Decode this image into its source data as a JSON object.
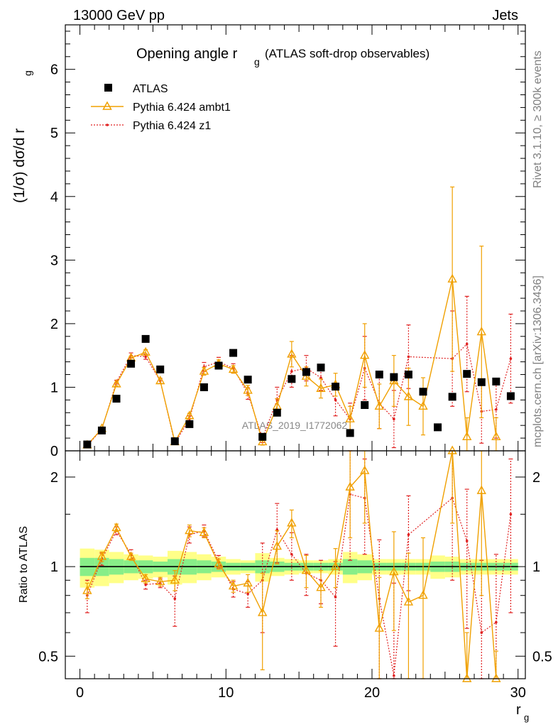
{
  "header": {
    "energy_label": "13000 GeV pp",
    "process_label": "Jets"
  },
  "side_labels": {
    "rivet": "Rivet 3.1.10, ≥ 300k events",
    "mcplots": "mcplots.cern.ch [arXiv:1306.3436]"
  },
  "analysis_id": "ATLAS_2019_I1772062",
  "colors": {
    "atlas": "#000000",
    "ambt1": "#f0a000",
    "z1": "#e02020",
    "band_outer": "#ffff88",
    "band_inner": "#88ee88"
  },
  "chart_data": [
    {
      "type": "scatter",
      "panel": "main",
      "title_main": "Opening angle r",
      "title_sub": "g",
      "title_rest": "(ATLAS soft-drop observables)",
      "ylabel": "(1/σ) dσ/d r",
      "ylabel_sub": "g",
      "xlim": [
        -1,
        30.5
      ],
      "ylim": [
        0,
        6.7
      ],
      "yticks": [
        0,
        1,
        2,
        3,
        4,
        5,
        6
      ],
      "ytick_labels": [
        "0",
        "1",
        "2",
        "3",
        "4",
        "5",
        "6"
      ],
      "legend": [
        "ATLAS",
        "Pythia 6.424 ambt1",
        "Pythia 6.424 z1"
      ],
      "series": [
        {
          "name": "ATLAS",
          "x": [
            0.5,
            1.5,
            2.5,
            3.5,
            4.5,
            5.5,
            6.5,
            7.5,
            8.5,
            9.5,
            10.5,
            11.5,
            12.5,
            13.5,
            14.5,
            15.5,
            16.5,
            17.5,
            18.5,
            19.5,
            20.5,
            21.5,
            22.5,
            23.5,
            24.5,
            25.5,
            26.5,
            27.5,
            28.5,
            29.5
          ],
          "y": [
            0.1,
            0.32,
            0.82,
            1.37,
            1.76,
            1.28,
            0.15,
            0.42,
            1.0,
            1.34,
            1.54,
            1.12,
            0.22,
            0.6,
            1.13,
            1.24,
            1.31,
            1.01,
            0.28,
            0.72,
            1.2,
            1.16,
            1.2,
            0.93,
            0.37,
            0.85,
            1.21,
            1.08,
            1.09,
            0.86
          ]
        },
        {
          "name": "Pythia 6.424 ambt1",
          "x": [
            0.5,
            1.5,
            2.5,
            3.5,
            4.5,
            5.5,
            6.5,
            7.5,
            8.5,
            9.5,
            10.5,
            11.5,
            12.5,
            13.5,
            14.5,
            15.5,
            16.5,
            17.5,
            18.5,
            19.5,
            20.5,
            21.5,
            22.5,
            23.5,
            25.5,
            26.5,
            27.5,
            28.5
          ],
          "y": [
            0.09,
            0.35,
            1.05,
            1.46,
            1.55,
            1.1,
            0.14,
            0.55,
            1.25,
            1.37,
            1.28,
            0.95,
            0.14,
            0.7,
            1.52,
            1.17,
            0.98,
            1.04,
            0.5,
            1.5,
            0.7,
            1.1,
            0.85,
            0.7,
            2.7,
            0.22,
            1.87,
            0.22
          ],
          "err": [
            0.02,
            0.02,
            0.03,
            0.03,
            0.04,
            0.04,
            0.02,
            0.04,
            0.06,
            0.06,
            0.06,
            0.08,
            0.05,
            0.12,
            0.2,
            0.15,
            0.15,
            0.18,
            0.2,
            0.5,
            0.35,
            0.4,
            0.45,
            0.45,
            1.45,
            0.3,
            1.35,
            0.3
          ]
        },
        {
          "name": "Pythia 6.424 z1",
          "x": [
            0.5,
            1.5,
            2.5,
            3.5,
            4.5,
            5.5,
            6.5,
            7.5,
            8.5,
            9.5,
            10.5,
            11.5,
            12.5,
            13.5,
            14.5,
            15.5,
            16.5,
            17.5,
            18.5,
            19.5,
            20.5,
            21.5,
            22.5,
            25.5,
            26.5,
            27.5,
            28.5,
            29.5
          ],
          "y": [
            0.08,
            0.34,
            1.08,
            1.5,
            1.48,
            1.1,
            0.12,
            0.5,
            1.32,
            1.4,
            1.3,
            0.9,
            0.2,
            0.8,
            1.25,
            1.3,
            1.15,
            0.8,
            0.5,
            1.3,
            0.75,
            0.5,
            1.48,
            1.45,
            1.68,
            0.62,
            0.65,
            1.45
          ],
          "err": [
            0.02,
            0.02,
            0.03,
            0.04,
            0.04,
            0.04,
            0.02,
            0.05,
            0.07,
            0.07,
            0.07,
            0.09,
            0.07,
            0.2,
            0.25,
            0.2,
            0.2,
            0.25,
            0.25,
            0.5,
            0.4,
            0.45,
            0.5,
            0.75,
            0.75,
            0.5,
            0.45,
            0.7
          ]
        }
      ]
    },
    {
      "type": "scatter",
      "panel": "ratio",
      "ylabel": "Ratio to ATLAS",
      "xlabel": "r",
      "xlabel_sub": "g",
      "xlim": [
        -1,
        30.5
      ],
      "ylim_log": [
        0.42,
        2.45
      ],
      "yticks": [
        0.5,
        1,
        2
      ],
      "ytick_labels": [
        "0.5",
        "1",
        "2"
      ],
      "xticks": [
        0,
        10,
        20,
        30
      ],
      "xtick_labels": [
        "0",
        "10",
        "20",
        "30"
      ],
      "band_outer_halfwidth": [
        0.15,
        0.14,
        0.12,
        0.1,
        0.09,
        0.08,
        0.13,
        0.12,
        0.1,
        0.08,
        0.06,
        0.05,
        0.11,
        0.07,
        0.06,
        0.05,
        0.05,
        0.06,
        0.12,
        0.1,
        0.06,
        0.06,
        0.06,
        0.06,
        0.09,
        0.08,
        0.06,
        0.06,
        0.06,
        0.06
      ],
      "band_inner_halfwidth": [
        0.07,
        0.07,
        0.06,
        0.05,
        0.05,
        0.04,
        0.06,
        0.06,
        0.05,
        0.04,
        0.03,
        0.03,
        0.05,
        0.04,
        0.03,
        0.03,
        0.03,
        0.03,
        0.06,
        0.05,
        0.03,
        0.03,
        0.03,
        0.03,
        0.04,
        0.04,
        0.03,
        0.03,
        0.03,
        0.03
      ],
      "series": [
        {
          "name": "Pythia 6.424 ambt1",
          "x": [
            0.5,
            1.5,
            2.5,
            3.5,
            4.5,
            5.5,
            6.5,
            7.5,
            8.5,
            9.5,
            10.5,
            11.5,
            12.5,
            13.5,
            14.5,
            15.5,
            16.5,
            17.5,
            18.5,
            19.5,
            20.5,
            21.5,
            22.5,
            23.5,
            25.5,
            26.5,
            27.5,
            28.5
          ],
          "y": [
            0.83,
            1.08,
            1.35,
            1.08,
            0.91,
            0.89,
            0.9,
            1.32,
            1.3,
            1.02,
            0.86,
            0.88,
            0.7,
            1.17,
            1.4,
            0.97,
            0.85,
            1.0,
            1.85,
            2.1,
            0.62,
            0.96,
            0.76,
            0.8,
            2.6,
            0.3,
            1.8,
            0.22
          ],
          "err": [
            0.05,
            0.04,
            0.04,
            0.03,
            0.03,
            0.03,
            0.07,
            0.06,
            0.05,
            0.04,
            0.04,
            0.06,
            0.25,
            0.15,
            0.15,
            0.12,
            0.12,
            0.15,
            0.6,
            0.7,
            0.3,
            0.35,
            0.35,
            0.45,
            1.2,
            0.3,
            1.0,
            0.3
          ]
        },
        {
          "name": "Pythia 6.424 z1",
          "x": [
            0.5,
            1.5,
            2.5,
            3.5,
            4.5,
            5.5,
            6.5,
            7.5,
            8.5,
            9.5,
            10.5,
            11.5,
            12.5,
            13.5,
            14.5,
            15.5,
            16.5,
            17.5,
            18.5,
            19.5,
            20.5,
            21.5,
            22.5,
            25.5,
            26.5,
            27.5,
            28.5,
            29.5
          ],
          "y": [
            0.8,
            1.06,
            1.32,
            1.1,
            0.87,
            0.88,
            0.78,
            1.28,
            1.32,
            1.04,
            0.84,
            0.81,
            0.9,
            1.33,
            1.1,
            0.95,
            0.9,
            0.79,
            1.75,
            1.7,
            0.78,
            0.43,
            1.28,
            1.7,
            1.22,
            0.6,
            0.65,
            1.5
          ],
          "err": [
            0.1,
            0.05,
            0.04,
            0.04,
            0.03,
            0.03,
            0.15,
            0.08,
            0.06,
            0.05,
            0.05,
            0.08,
            0.3,
            0.3,
            0.2,
            0.15,
            0.15,
            0.25,
            0.7,
            0.6,
            0.45,
            0.45,
            0.45,
            0.8,
            0.6,
            0.45,
            0.45,
            0.8
          ]
        }
      ]
    }
  ]
}
